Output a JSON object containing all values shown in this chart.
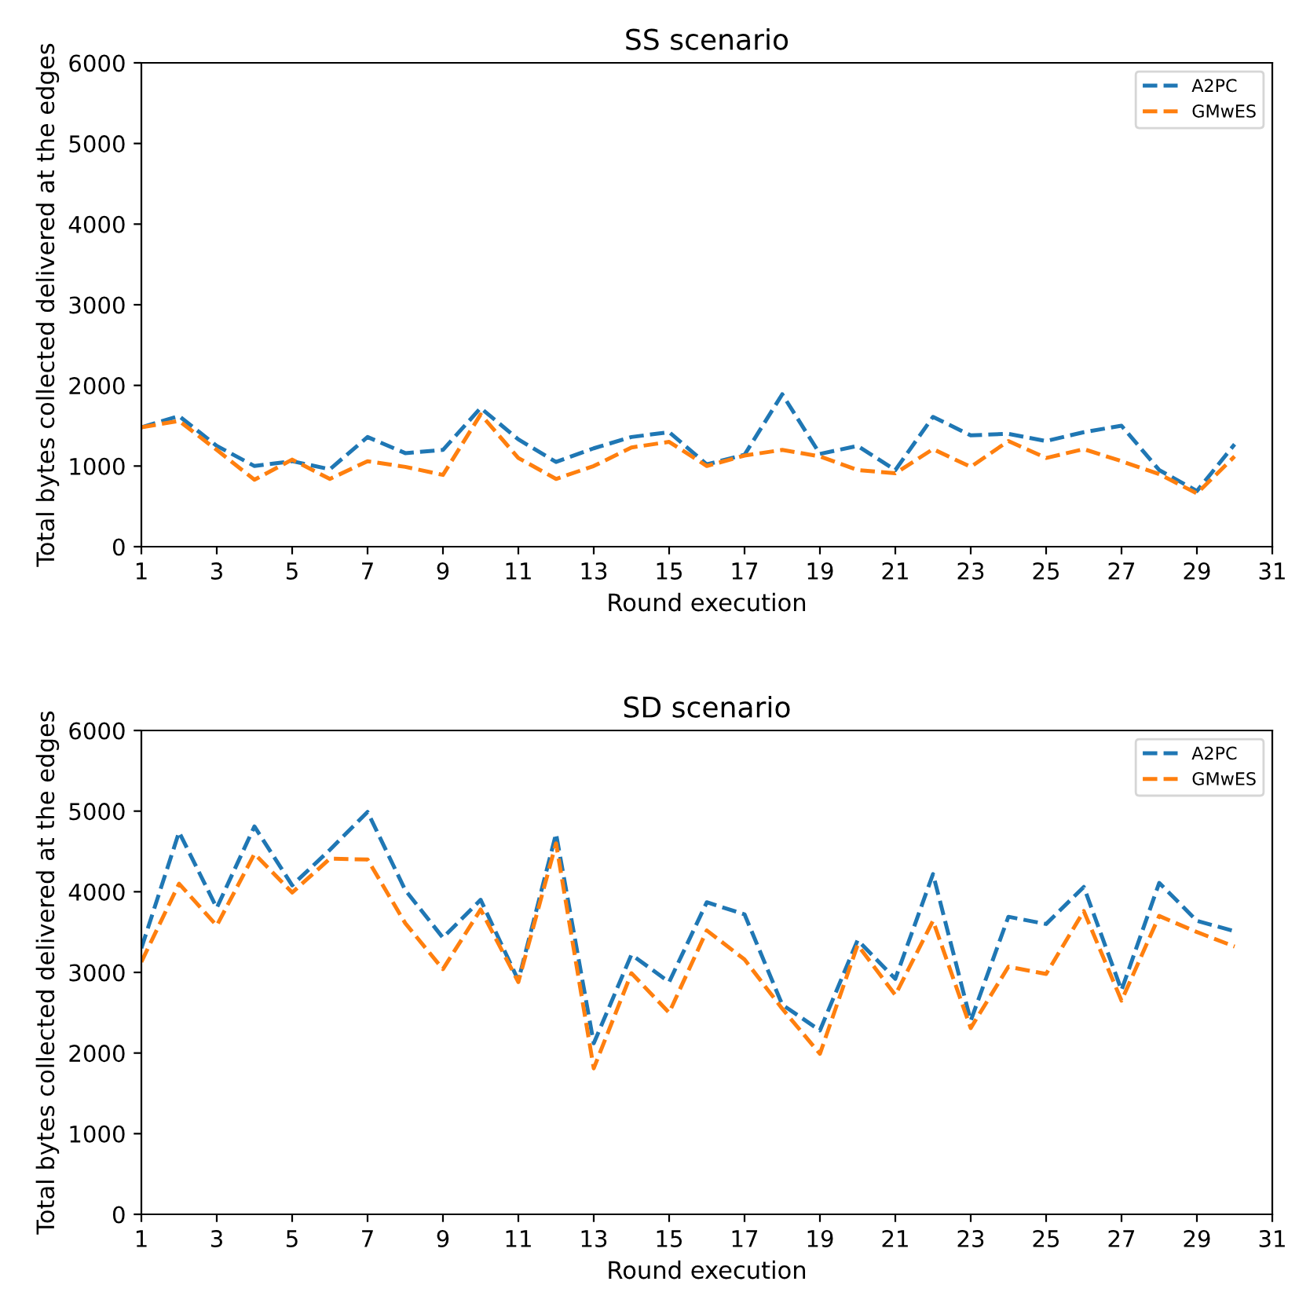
{
  "chart_data": [
    {
      "type": "line",
      "title": "SS scenario",
      "xlabel": "Round execution",
      "ylabel": "Total bytes collected delivered at the edges",
      "x": [
        1,
        2,
        3,
        4,
        5,
        6,
        7,
        8,
        9,
        10,
        11,
        12,
        13,
        14,
        15,
        16,
        17,
        18,
        19,
        20,
        21,
        22,
        23,
        24,
        25,
        26,
        27,
        28,
        29,
        30
      ],
      "xlim": [
        1,
        31
      ],
      "xticks": [
        1,
        3,
        5,
        7,
        9,
        11,
        13,
        15,
        17,
        19,
        21,
        23,
        25,
        27,
        29,
        31
      ],
      "ylim": [
        0,
        6000
      ],
      "yticks": [
        0,
        1000,
        2000,
        3000,
        4000,
        5000,
        6000
      ],
      "line_style": "dashed",
      "legend": "top right",
      "grid": false,
      "series": [
        {
          "name": "A2PC",
          "color": "#1f77b4",
          "values": [
            1480,
            1620,
            1250,
            1000,
            1060,
            960,
            1360,
            1160,
            1200,
            1720,
            1330,
            1050,
            1220,
            1360,
            1420,
            1020,
            1140,
            1890,
            1150,
            1250,
            950,
            1610,
            1380,
            1400,
            1310,
            1420,
            1500,
            950,
            690,
            1270
          ]
        },
        {
          "name": "GMwES",
          "color": "#ff7f0e",
          "values": [
            1480,
            1560,
            1200,
            830,
            1080,
            840,
            1060,
            990,
            890,
            1640,
            1100,
            840,
            1000,
            1230,
            1300,
            1000,
            1130,
            1200,
            1120,
            950,
            910,
            1210,
            990,
            1310,
            1100,
            1210,
            1060,
            900,
            660,
            1120
          ]
        }
      ]
    },
    {
      "type": "line",
      "title": "SD scenario",
      "xlabel": "Round execution",
      "ylabel": "Total bytes collected delivered at the edges",
      "x": [
        1,
        2,
        3,
        4,
        5,
        6,
        7,
        8,
        9,
        10,
        11,
        12,
        13,
        14,
        15,
        16,
        17,
        18,
        19,
        20,
        21,
        22,
        23,
        24,
        25,
        26,
        27,
        28,
        29,
        30
      ],
      "xlim": [
        1,
        31
      ],
      "xticks": [
        1,
        3,
        5,
        7,
        9,
        11,
        13,
        15,
        17,
        19,
        21,
        23,
        25,
        27,
        29,
        31
      ],
      "ylim": [
        0,
        6000
      ],
      "yticks": [
        0,
        1000,
        2000,
        3000,
        4000,
        5000,
        6000
      ],
      "line_style": "dashed",
      "legend": "top right",
      "grid": false,
      "series": [
        {
          "name": "A2PC",
          "color": "#1f77b4",
          "values": [
            3300,
            4740,
            3800,
            4810,
            4080,
            4520,
            4990,
            4020,
            3430,
            3900,
            2900,
            4720,
            2120,
            3220,
            2880,
            3870,
            3720,
            2600,
            2280,
            3400,
            2920,
            4220,
            2400,
            3690,
            3600,
            4060,
            2780,
            4110,
            3640,
            3510
          ]
        },
        {
          "name": "GMwES",
          "color": "#ff7f0e",
          "values": [
            3130,
            4100,
            3580,
            4470,
            3990,
            4410,
            4400,
            3610,
            3040,
            3780,
            2880,
            4600,
            1810,
            2990,
            2500,
            3520,
            3160,
            2550,
            1990,
            3340,
            2720,
            3640,
            2310,
            3070,
            2980,
            3760,
            2650,
            3700,
            3500,
            3320
          ]
        }
      ]
    }
  ]
}
